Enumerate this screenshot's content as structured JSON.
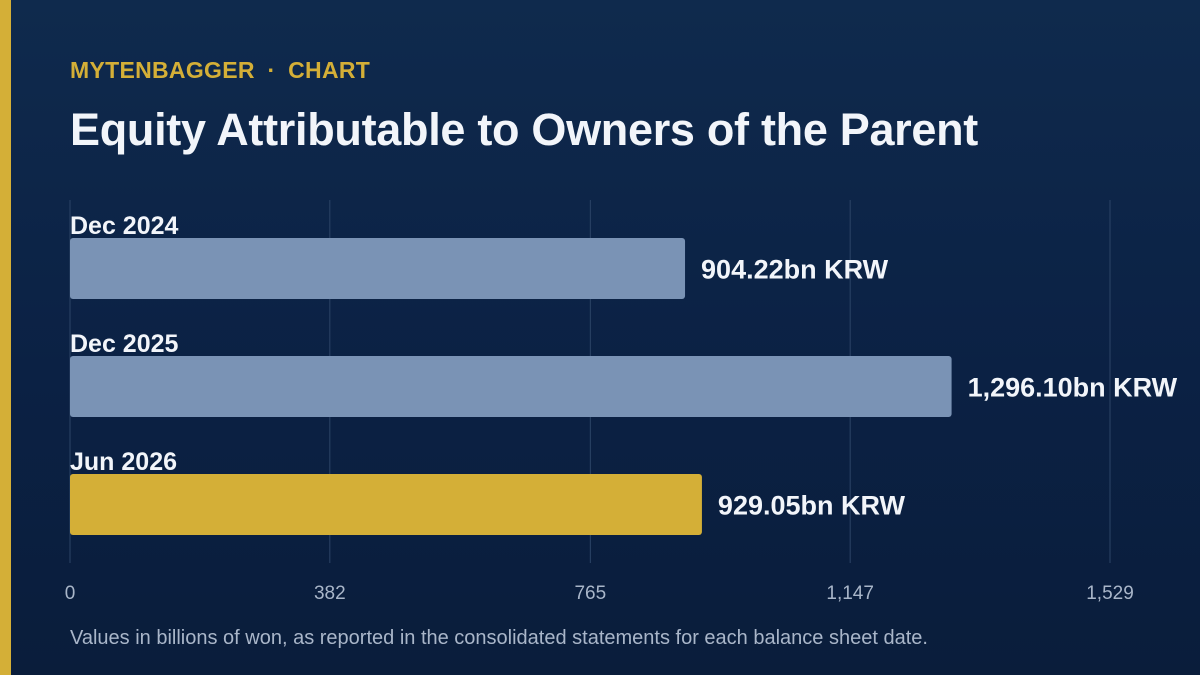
{
  "brand": {
    "name": "MYTENBAGGER",
    "separator": "·",
    "section": "CHART"
  },
  "colors": {
    "accent": "#d4af37",
    "bar": "#7a93b5",
    "highlight": "#d4af37",
    "grid": "#2c4466",
    "label": "#f2f5fa",
    "tick": "#a9b6c9"
  },
  "chart_data": {
    "type": "bar",
    "orientation": "horizontal",
    "title": "Equity Attributable to Owners of the Parent",
    "categories": [
      "Dec 2024",
      "Dec 2025",
      "Jun 2026"
    ],
    "values": [
      904.22,
      1296.1,
      929.05
    ],
    "value_labels": [
      "904.22bn KRW",
      "1,296.10bn KRW",
      "929.05bn KRW"
    ],
    "highlight_index": 2,
    "xlim": [
      0,
      1529
    ],
    "ticks": [
      0,
      382,
      765,
      1147,
      1529
    ],
    "tick_labels": [
      "0",
      "382",
      "765",
      "1,147",
      "1,529"
    ],
    "grid": true,
    "xlabel": "",
    "ylabel": ""
  },
  "footnote": "Values in billions of won, as reported in the consolidated statements for each balance sheet date."
}
